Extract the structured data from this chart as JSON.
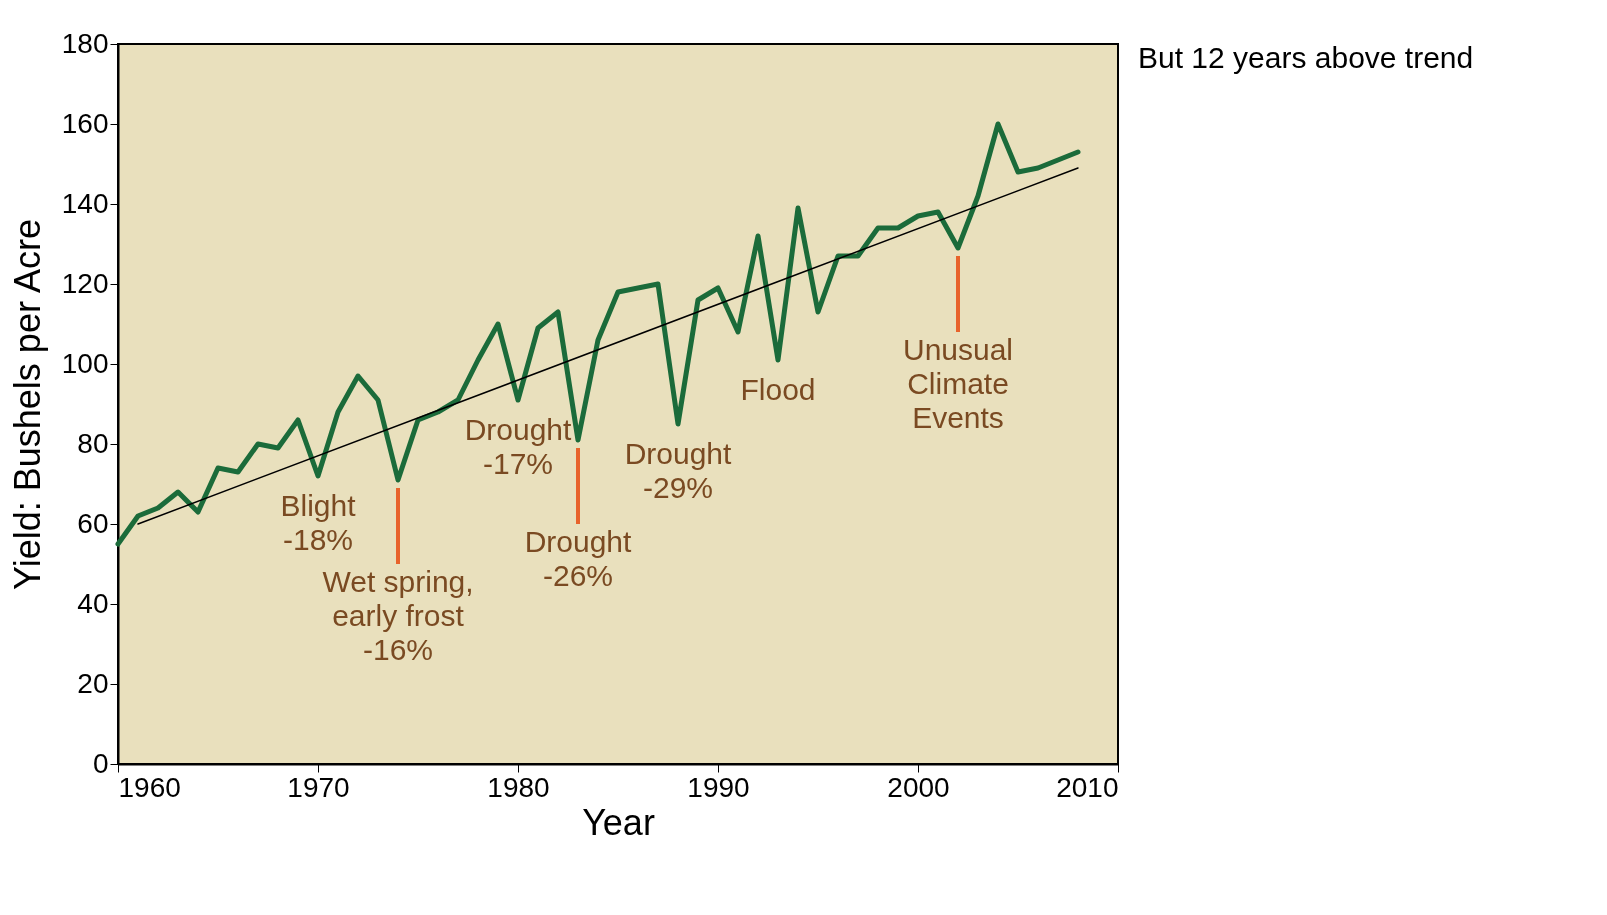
{
  "chart_data": {
    "type": "line",
    "xlabel": "Year",
    "ylabel": "Yield: Bushels per Acre",
    "x": [
      1960,
      1961,
      1962,
      1963,
      1964,
      1965,
      1966,
      1967,
      1968,
      1969,
      1970,
      1971,
      1972,
      1973,
      1974,
      1975,
      1976,
      1977,
      1978,
      1979,
      1980,
      1981,
      1982,
      1983,
      1984,
      1985,
      1986,
      1987,
      1988,
      1989,
      1990,
      1991,
      1992,
      1993,
      1994,
      1995,
      1996,
      1997,
      1998,
      1999,
      2000,
      2001,
      2002,
      2003,
      2004,
      2005,
      2006,
      2007,
      2008
    ],
    "series": [
      {
        "color": "#1b6b3a",
        "values": [
          55,
          62,
          64,
          68,
          63,
          74,
          73,
          80,
          79,
          86,
          72,
          88,
          97,
          91,
          71,
          86,
          88,
          91,
          101,
          110,
          91,
          109,
          113,
          81,
          106,
          118,
          119,
          120,
          85,
          116,
          119,
          108,
          132,
          101,
          139,
          113,
          127,
          127,
          134,
          134,
          137,
          138,
          129,
          142,
          160,
          148,
          149,
          151,
          153
        ]
      },
      {
        "type": "line",
        "color": "#000000",
        "x": [
          1961,
          2008
        ],
        "values": [
          60,
          149
        ]
      }
    ],
    "xlim": [
      1960,
      2010
    ],
    "xticks": [
      1960,
      1970,
      1980,
      1990,
      2000,
      2010
    ],
    "ylim": [
      0,
      180
    ],
    "yticks": [
      0,
      20,
      40,
      60,
      80,
      100,
      120,
      140,
      160,
      180
    ],
    "grid": false,
    "marker": "none",
    "line_style": "solid",
    "annotations": [
      {
        "text": "Blight\n-18%",
        "x": 1970,
        "y": 72
      },
      {
        "text": "Wet spring,\nearly frost\n-16%",
        "x": 1974,
        "y": 71
      },
      {
        "text": "Drought\n-17%",
        "x": 1980,
        "y": 91
      },
      {
        "text": "Drought\n-26%",
        "x": 1983,
        "y": 81
      },
      {
        "text": "Drought\n-29%",
        "x": 1988,
        "y": 85
      },
      {
        "text": "Unusual\nClimate\nEvents",
        "x": 2002,
        "y": 129
      },
      {
        "text": "Flood",
        "x": 1993,
        "y": 101
      },
      "But 12 years above trend"
    ]
  }
}
